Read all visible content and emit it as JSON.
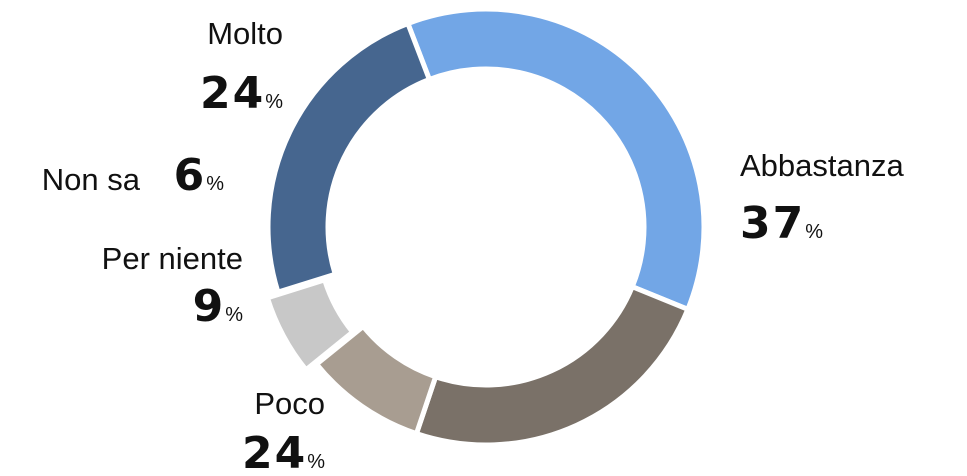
{
  "chart_data": {
    "type": "donut",
    "categories": [
      "Abbastanza",
      "Poco",
      "Per niente",
      "Non sa",
      "Molto"
    ],
    "values": [
      37,
      24,
      9,
      6,
      24
    ],
    "unit": "%",
    "colors": [
      "#72a6e6",
      "#7a7168",
      "#a89d91",
      "#c8c8c8",
      "#46668f"
    ]
  }
}
